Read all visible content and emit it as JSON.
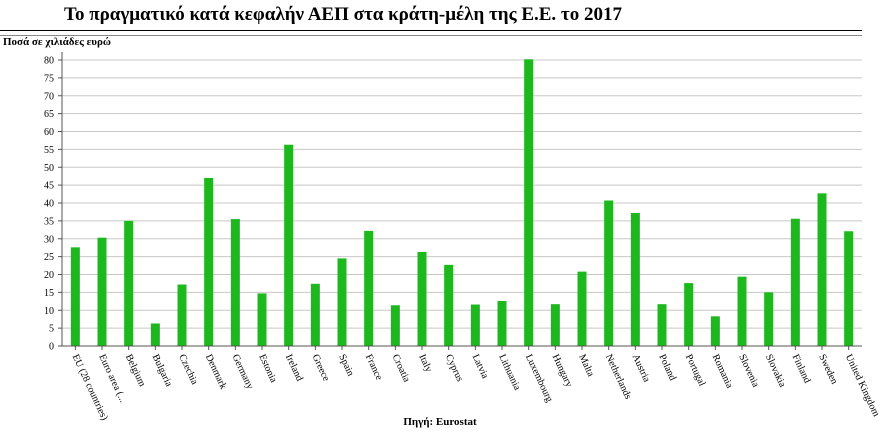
{
  "chart_data": {
    "type": "bar",
    "title": "Το πραγματικό κατά κεφαλήν ΑΕΠ στα κράτη-μέλη της Ε.Ε. το 2017",
    "ylabel": "Ποσά σε χιλιάδες ευρώ",
    "xlabel": "",
    "source": "Πηγή: Eurostat",
    "ylim": [
      0,
      80
    ],
    "yticks": [
      0,
      5,
      10,
      15,
      20,
      25,
      30,
      35,
      40,
      45,
      50,
      55,
      60,
      65,
      70,
      75,
      80
    ],
    "grid": true,
    "legend": "none",
    "bar_color": "#1db81d",
    "categories": [
      "EU (28 countries)",
      "Euro area (...",
      "Belgium",
      "Bulgaria",
      "Czechia",
      "Denmark",
      "Germany",
      "Estonia",
      "Ireland",
      "Greece",
      "Spain",
      "France",
      "Croatia",
      "Italy",
      "Cyprus",
      "Latvia",
      "Lithuania",
      "Luxembourg",
      "Hungary",
      "Malta",
      "Netherlands",
      "Austria",
      "Poland",
      "Portugal",
      "Romania",
      "Slovenia",
      "Slovakia",
      "Finland",
      "Sweden",
      "United Kingdom"
    ],
    "values": [
      27.6,
      30.3,
      35.0,
      6.3,
      17.2,
      47.0,
      35.5,
      14.7,
      56.3,
      17.4,
      24.5,
      32.2,
      11.4,
      26.3,
      22.7,
      11.6,
      12.6,
      80.2,
      11.7,
      20.8,
      40.7,
      37.2,
      11.7,
      17.6,
      8.3,
      19.4,
      15.0,
      35.6,
      42.7,
      32.1
    ]
  }
}
